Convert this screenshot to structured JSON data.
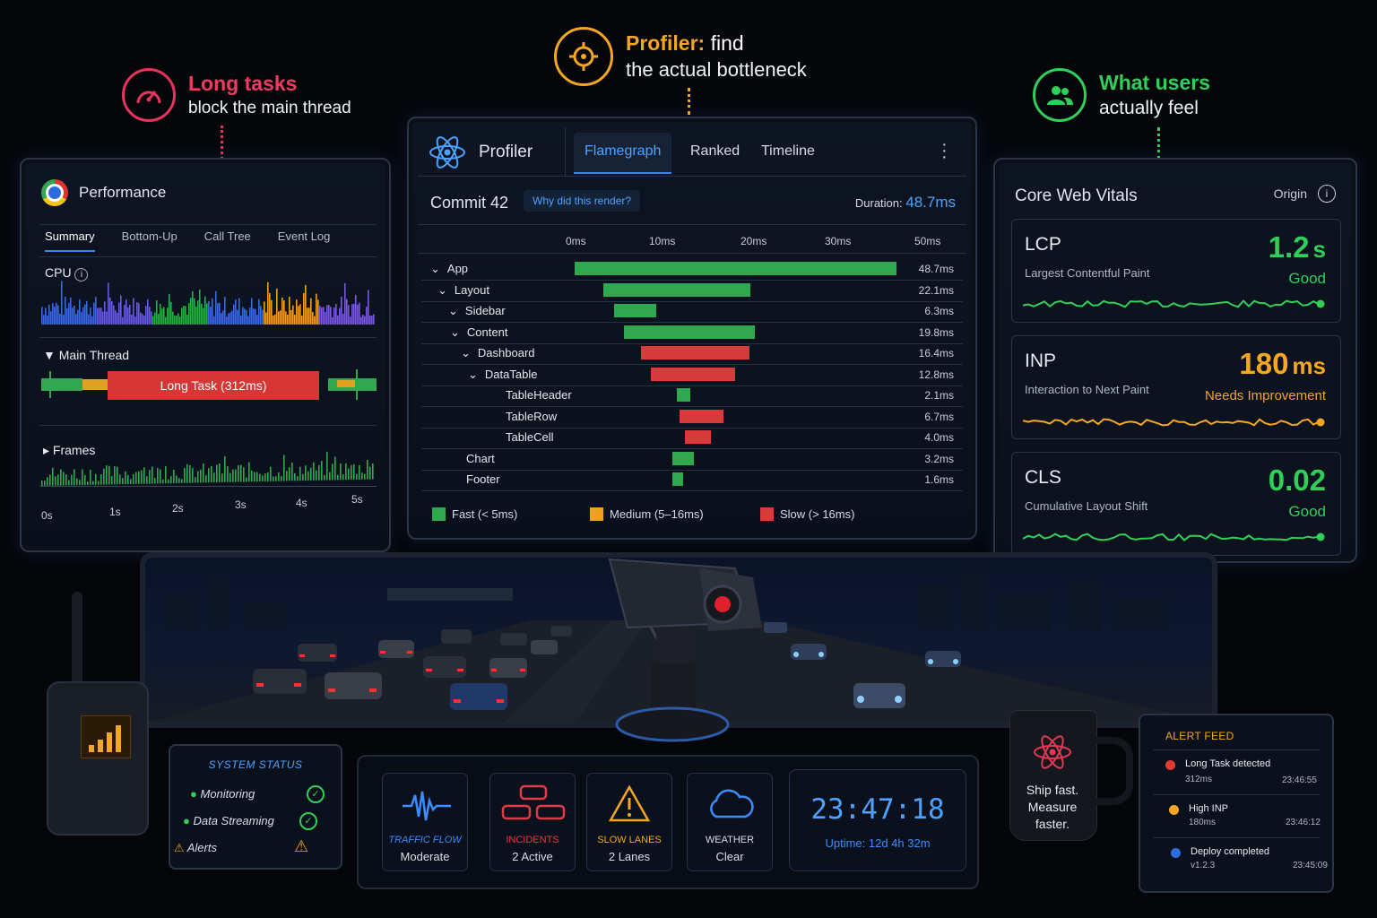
{
  "callouts": {
    "long_tasks": {
      "title": "Long tasks",
      "subtitle": "block the main thread"
    },
    "profiler": {
      "title_a": "Profiler:",
      "title_b": "find",
      "subtitle": "the actual bottleneck"
    },
    "users": {
      "title": "What users",
      "subtitle": "actually feel"
    }
  },
  "performance": {
    "title": "Performance",
    "tabs": [
      "Summary",
      "Bottom-Up",
      "Call Tree",
      "Event Log"
    ],
    "cpu_label": "CPU",
    "main_thread_label": "Main Thread",
    "long_task_label": "Long Task (312ms)",
    "frames_label": "Frames",
    "time_ticks": [
      "0s",
      "1s",
      "2s",
      "3s",
      "4s",
      "5s"
    ]
  },
  "profiler": {
    "title": "Profiler",
    "tabs": [
      "Flamegraph",
      "Ranked",
      "Timeline"
    ],
    "commit": "Commit 42",
    "why_button": "Why did this render?",
    "duration_label": "Duration:",
    "duration_value": "48.7ms",
    "axis": [
      "0ms",
      "10ms",
      "20ms",
      "30ms",
      "50ms"
    ],
    "rows": [
      {
        "name": "App",
        "arrow": "⌄",
        "time": "48.7ms",
        "start": 0.0,
        "dur": 48.7,
        "speed": "fast"
      },
      {
        "name": "Layout",
        "arrow": "⌄",
        "time": "22.1ms",
        "start": 4.4,
        "dur": 22.1,
        "speed": "fast"
      },
      {
        "name": "Sidebar",
        "arrow": "⌄",
        "time": "6.3ms",
        "start": 6.0,
        "dur": 6.3,
        "speed": "fast"
      },
      {
        "name": "Content",
        "arrow": "⌄",
        "time": "19.8ms",
        "start": 7.5,
        "dur": 19.8,
        "speed": "fast"
      },
      {
        "name": "Dashboard",
        "arrow": "⌄",
        "time": "16.4ms",
        "start": 10.0,
        "dur": 16.4,
        "speed": "slow"
      },
      {
        "name": "DataTable",
        "arrow": "⌄",
        "time": "12.8ms",
        "start": 11.5,
        "dur": 12.8,
        "speed": "slow"
      },
      {
        "name": "TableHeader",
        "arrow": "",
        "time": "2.1ms",
        "start": 15.4,
        "dur": 2.1,
        "speed": "fast"
      },
      {
        "name": "TableRow",
        "arrow": "",
        "time": "6.7ms",
        "start": 15.8,
        "dur": 6.7,
        "speed": "slow"
      },
      {
        "name": "TableCell",
        "arrow": "",
        "time": "4.0ms",
        "start": 16.6,
        "dur": 4.0,
        "speed": "slow"
      },
      {
        "name": "Chart",
        "arrow": "",
        "time": "3.2ms",
        "start": 14.8,
        "dur": 3.2,
        "speed": "fast"
      },
      {
        "name": "Footer",
        "arrow": "",
        "time": "1.6ms",
        "start": 14.8,
        "dur": 1.6,
        "speed": "fast"
      }
    ],
    "legend": [
      {
        "label": "Fast (< 5ms)",
        "color": "#2fa84f"
      },
      {
        "label": "Medium (5–16ms)",
        "color": "#f0a020"
      },
      {
        "label": "Slow (> 16ms)",
        "color": "#d93a3a"
      }
    ]
  },
  "vitals": {
    "title": "Core Web Vitals",
    "origin_label": "Origin",
    "items": [
      {
        "abbr": "LCP",
        "full": "Largest Contentful Paint",
        "value": "1.2",
        "unit": "s",
        "rating": "Good",
        "color": "#2fcf5a"
      },
      {
        "abbr": "INP",
        "full": "Interaction to Next Paint",
        "value": "180",
        "unit": "ms",
        "rating": "Needs Improvement",
        "color": "#f5a623"
      },
      {
        "abbr": "CLS",
        "full": "Cumulative Layout Shift",
        "value": "0.02",
        "unit": "",
        "rating": "Good",
        "color": "#2fcf5a"
      }
    ]
  },
  "system_status": {
    "title": "SYSTEM STATUS",
    "items": [
      {
        "label": "Monitoring",
        "state": "ok"
      },
      {
        "label": "Data Streaming",
        "state": "ok"
      },
      {
        "label": "Alerts",
        "state": "warn"
      }
    ]
  },
  "dashboard": {
    "cards": [
      {
        "title": "TRAFFIC FLOW",
        "value": "Moderate",
        "color": "#3b8cff",
        "icon": "waveform-icon"
      },
      {
        "title": "INCIDENTS",
        "value": "2 Active",
        "color": "#e23a45",
        "icon": "cars-icon"
      },
      {
        "title": "SLOW LANES",
        "value": "2 Lanes",
        "color": "#f5a623",
        "icon": "warning-icon"
      },
      {
        "title": "WEATHER",
        "value": "Clear",
        "color": "#3b8cff",
        "icon": "cloud-icon"
      }
    ],
    "clock": "23:47:18",
    "uptime": "Uptime: 12d 4h 32m"
  },
  "mug": {
    "line1": "Ship fast.",
    "line2": "Measure",
    "line3": "faster."
  },
  "alert_feed": {
    "title": "ALERT FEED",
    "items": [
      {
        "title": "Long Task detected",
        "detail": "312ms",
        "time": "23:46:55",
        "color": "#e23a3a"
      },
      {
        "title": "High INP",
        "detail": "180ms",
        "time": "23:46:12",
        "color": "#f5a623"
      },
      {
        "title": "Deploy completed",
        "detail": "v1.2.3",
        "time": "23:45:09",
        "color": "#2c6be0"
      }
    ]
  }
}
